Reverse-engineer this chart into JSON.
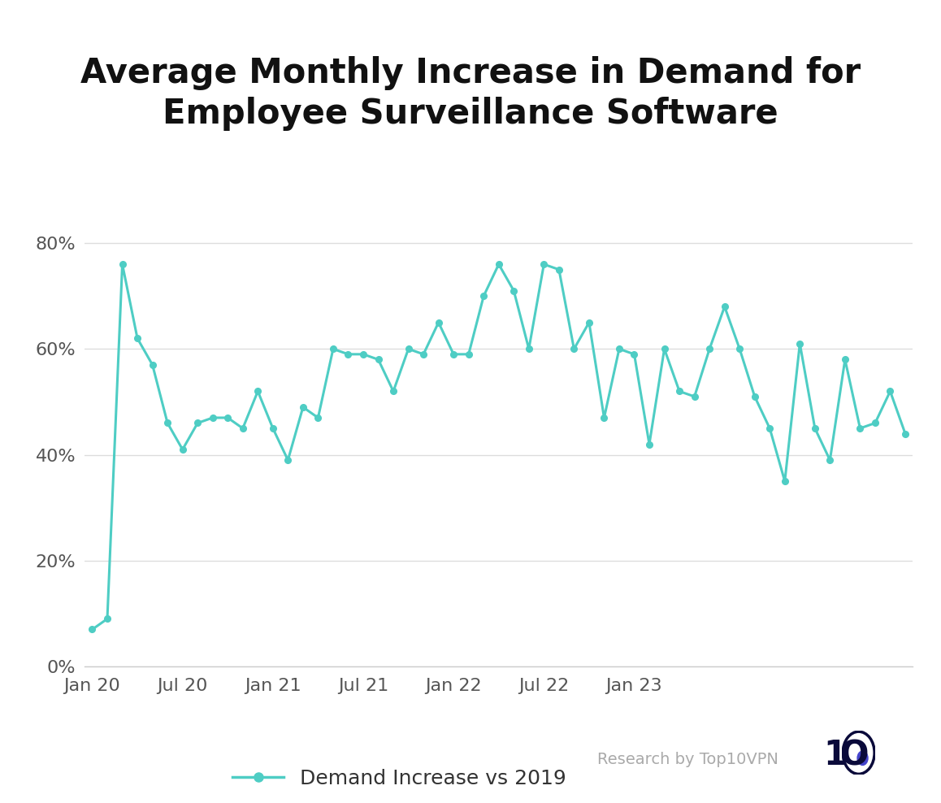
{
  "title": "Average Monthly Increase in Demand for\nEmployee Surveillance Software",
  "legend_label": "Demand Increase vs 2019",
  "line_color": "#4ECDC4",
  "background_color": "#FFFFFF",
  "ylabel_values": [
    0,
    20,
    40,
    60,
    80
  ],
  "watermark": "Research by Top10VPN",
  "values": [
    7,
    9,
    76,
    62,
    57,
    46,
    41,
    46,
    47,
    47,
    45,
    52,
    45,
    39,
    49,
    47,
    60,
    59,
    59,
    58,
    52,
    60,
    59,
    65,
    59,
    59,
    70,
    76,
    71,
    60,
    76,
    75,
    60,
    65,
    47,
    60,
    59,
    42,
    60,
    52,
    51,
    60,
    68,
    60,
    51,
    45,
    35,
    61,
    45,
    39,
    58,
    45,
    46,
    52,
    44
  ],
  "xtick_labels": [
    "Jan 20",
    "Jul 20",
    "Jan 21",
    "Jul 21",
    "Jan 22",
    "Jul 22",
    "Jan 23"
  ],
  "xtick_positions": [
    0,
    6,
    12,
    18,
    24,
    30,
    36
  ],
  "ylim": [
    0,
    88
  ],
  "xlim": [
    -0.5,
    54.5
  ],
  "title_fontsize": 30,
  "tick_fontsize": 16,
  "legend_fontsize": 18,
  "watermark_fontsize": 14,
  "logo_fontsize": 30
}
